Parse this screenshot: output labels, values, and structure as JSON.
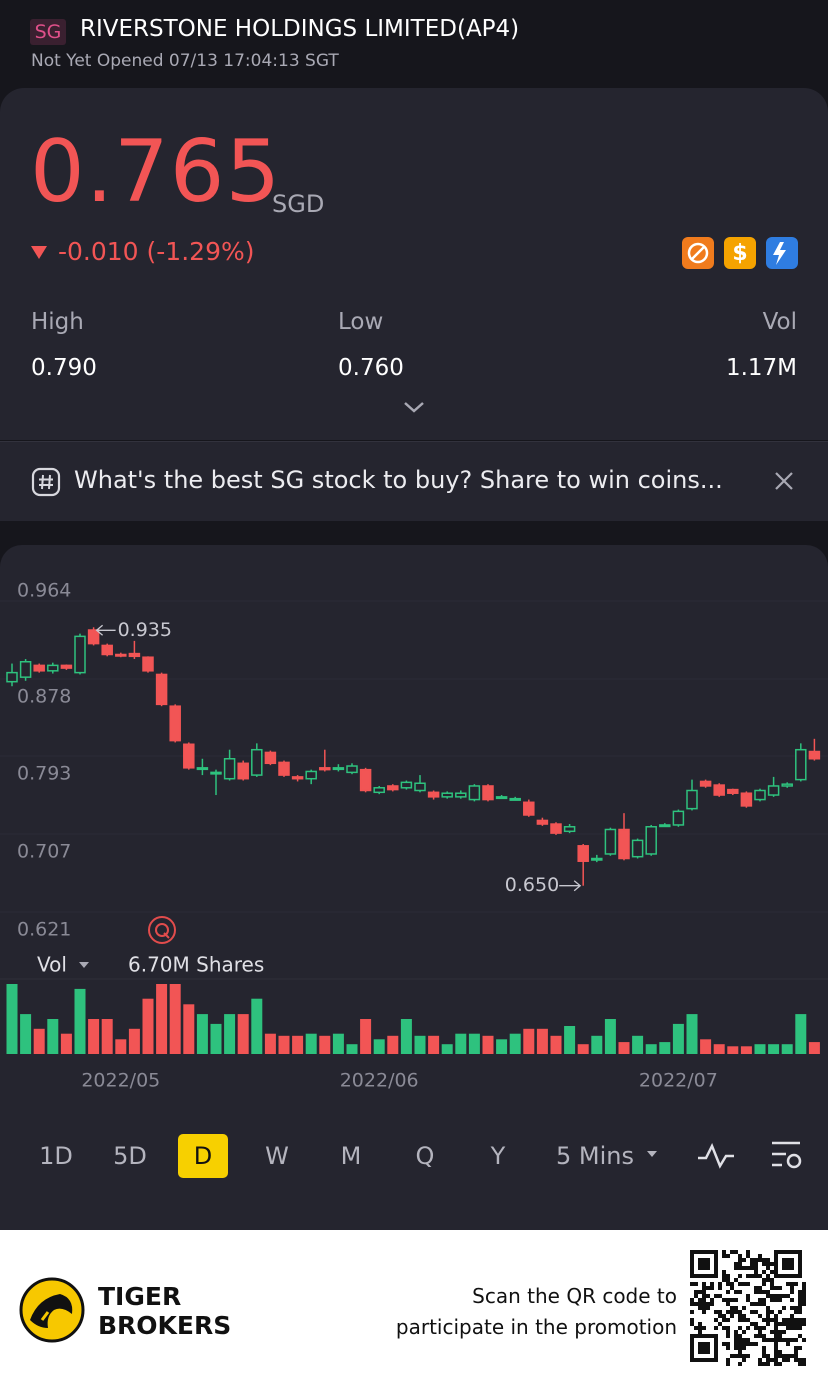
{
  "header": {
    "badge": "SG",
    "title": "RIVERSTONE HOLDINGS LIMITED(AP4)",
    "status": "Not Yet Opened 07/13 17:04:13 SGT"
  },
  "quote": {
    "price": "0.765",
    "currency": "SGD",
    "change": "-0.010 (-1.29%)",
    "stats": [
      {
        "label": "High",
        "value": "0.790"
      },
      {
        "label": "Low",
        "value": "0.760"
      },
      {
        "label": "Vol",
        "value": "1.17M"
      }
    ]
  },
  "banner": {
    "text": "What's the best SG stock to buy? Share to win coins..."
  },
  "chart_data": {
    "type": "candlestick",
    "up_color": "#2ec27e",
    "down_color": "#f25555",
    "ylim": [
      0.621,
      0.964
    ],
    "yticks": [
      0.964,
      0.878,
      0.793,
      0.707,
      0.621
    ],
    "annotations": [
      "0.935",
      "0.650"
    ],
    "volume_label": "Vol",
    "volume_value": "6.70M Shares",
    "categories": [
      null,
      null,
      null,
      null,
      null,
      null,
      null,
      null,
      "2022/05",
      null,
      null,
      null,
      null,
      null,
      null,
      null,
      null,
      null,
      null,
      null,
      null,
      null,
      null,
      null,
      null,
      null,
      null,
      "2022/06",
      null,
      null,
      null,
      null,
      null,
      null,
      null,
      null,
      null,
      null,
      null,
      null,
      null,
      null,
      null,
      null,
      null,
      null,
      null,
      null,
      null,
      "2022/07",
      null,
      null,
      null,
      null,
      null,
      null,
      null,
      null,
      null,
      null
    ],
    "open": [
      0.875,
      0.88,
      0.893,
      0.887,
      0.893,
      0.885,
      0.932,
      0.915,
      0.905,
      0.906,
      0.902,
      0.883,
      0.848,
      0.806,
      0.78,
      0.775,
      0.768,
      0.785,
      0.772,
      0.797,
      0.786,
      0.77,
      0.768,
      0.78,
      0.78,
      0.775,
      0.778,
      0.753,
      0.76,
      0.758,
      0.755,
      0.753,
      0.748,
      0.748,
      0.745,
      0.76,
      0.748,
      0.745,
      0.742,
      0.722,
      0.718,
      0.71,
      0.694,
      0.68,
      0.685,
      0.712,
      0.682,
      0.685,
      0.717,
      0.717,
      0.735,
      0.765,
      0.761,
      0.756,
      0.752,
      0.745,
      0.75,
      0.76,
      0.767,
      0.798
    ],
    "high": [
      0.895,
      0.9,
      0.895,
      0.896,
      0.894,
      0.928,
      0.935,
      0.917,
      0.907,
      0.92,
      0.903,
      0.885,
      0.85,
      0.808,
      0.79,
      0.778,
      0.8,
      0.788,
      0.807,
      0.799,
      0.788,
      0.772,
      0.778,
      0.8,
      0.784,
      0.785,
      0.78,
      0.76,
      0.762,
      0.766,
      0.772,
      0.755,
      0.754,
      0.755,
      0.762,
      0.762,
      0.75,
      0.748,
      0.745,
      0.725,
      0.72,
      0.718,
      0.696,
      0.684,
      0.714,
      0.73,
      0.702,
      0.717,
      0.719,
      0.734,
      0.767,
      0.767,
      0.763,
      0.757,
      0.754,
      0.757,
      0.77,
      0.764,
      0.807,
      0.812
    ],
    "low": [
      0.87,
      0.876,
      0.885,
      0.884,
      0.888,
      0.883,
      0.915,
      0.903,
      0.902,
      0.9,
      0.885,
      0.848,
      0.808,
      0.778,
      0.772,
      0.75,
      0.766,
      0.766,
      0.77,
      0.783,
      0.77,
      0.765,
      0.762,
      0.776,
      0.776,
      0.773,
      0.753,
      0.751,
      0.754,
      0.756,
      0.753,
      0.745,
      0.746,
      0.746,
      0.743,
      0.743,
      0.746,
      0.744,
      0.726,
      0.716,
      0.706,
      0.708,
      0.65,
      0.676,
      0.683,
      0.678,
      0.68,
      0.683,
      0.715,
      0.715,
      0.733,
      0.758,
      0.748,
      0.75,
      0.736,
      0.743,
      0.748,
      0.758,
      0.765,
      0.788
    ],
    "close": [
      0.885,
      0.897,
      0.887,
      0.893,
      0.89,
      0.925,
      0.917,
      0.905,
      0.904,
      0.903,
      0.887,
      0.85,
      0.81,
      0.78,
      0.78,
      0.775,
      0.79,
      0.768,
      0.8,
      0.785,
      0.772,
      0.768,
      0.776,
      0.778,
      0.78,
      0.782,
      0.755,
      0.758,
      0.756,
      0.764,
      0.763,
      0.748,
      0.752,
      0.752,
      0.76,
      0.745,
      0.748,
      0.746,
      0.728,
      0.718,
      0.708,
      0.715,
      0.677,
      0.68,
      0.712,
      0.68,
      0.7,
      0.715,
      0.717,
      0.732,
      0.755,
      0.76,
      0.75,
      0.752,
      0.738,
      0.755,
      0.76,
      0.762,
      0.8,
      0.79
    ],
    "volume": [
      10,
      5.7,
      3.6,
      5,
      2.9,
      9.3,
      5,
      5,
      2.1,
      3.6,
      7.9,
      10,
      10,
      7.1,
      5.7,
      4.3,
      5.7,
      5.7,
      7.9,
      2.9,
      2.6,
      2.6,
      2.9,
      2.6,
      2.9,
      1.4,
      5,
      2.1,
      2.6,
      5,
      2.6,
      2.6,
      1.4,
      2.9,
      2.9,
      2.6,
      2.1,
      2.9,
      3.6,
      3.6,
      2.6,
      4,
      1.4,
      2.6,
      5,
      1.7,
      2.6,
      1.4,
      1.7,
      4.3,
      5.7,
      2.1,
      1.4,
      1.1,
      1.1,
      1.4,
      1.4,
      1.4,
      5.7,
      1.7
    ]
  },
  "periods": [
    {
      "label": "1D"
    },
    {
      "label": "5D"
    },
    {
      "label": "D",
      "selected": true
    },
    {
      "label": "W"
    },
    {
      "label": "M"
    },
    {
      "label": "Q"
    },
    {
      "label": "Y"
    },
    {
      "label": "5 Mins"
    }
  ],
  "footer": {
    "brand": [
      "TIGER",
      "BROKERS"
    ],
    "text": [
      "Scan the QR code to",
      "participate in the promotion"
    ]
  }
}
